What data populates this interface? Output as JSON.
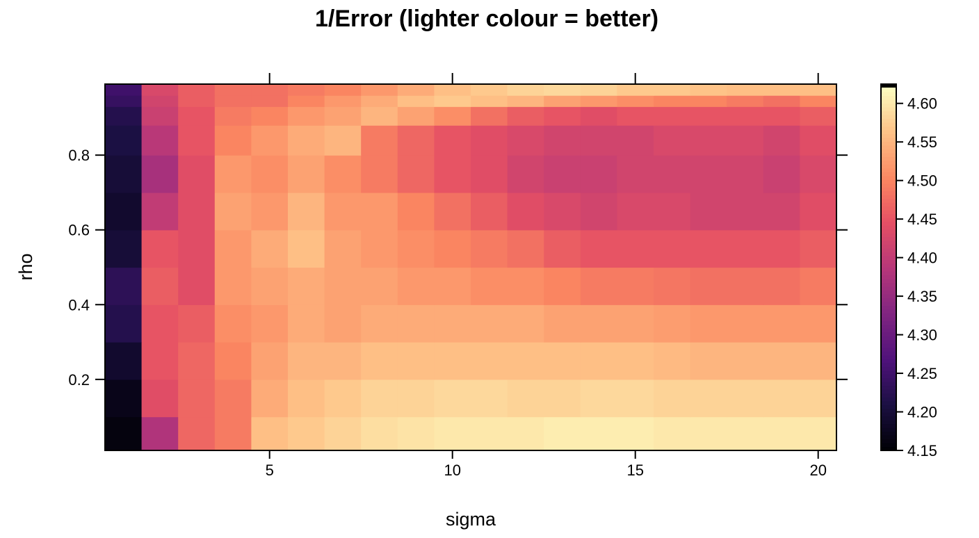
{
  "chart_data": {
    "type": "heatmap",
    "title": "1/Error (lighter colour = better)",
    "xlabel": "sigma",
    "ylabel": "rho",
    "x_range": [
      0.5,
      20.5
    ],
    "y_range": [
      0.01,
      0.99
    ],
    "x_ticks": [
      5,
      10,
      15,
      20
    ],
    "y_ticks": [
      0.2,
      0.4,
      0.6,
      0.8
    ],
    "x_tick_labels": [
      "5",
      "10",
      "15",
      "20"
    ],
    "y_tick_labels": [
      "0.2",
      "0.4",
      "0.6",
      "0.8"
    ],
    "sigma": [
      1,
      2,
      3,
      4,
      5,
      6,
      7,
      8,
      9,
      10,
      11,
      12,
      13,
      14,
      15,
      16,
      17,
      18,
      19,
      20
    ],
    "rho_breaks": [
      0.01,
      0.1,
      0.2,
      0.3,
      0.4,
      0.5,
      0.6,
      0.7,
      0.8,
      0.88,
      0.93,
      0.96,
      0.99
    ],
    "values": [
      [
        4.16,
        4.38,
        4.47,
        4.49,
        4.56,
        4.57,
        4.58,
        4.59,
        4.595,
        4.6,
        4.6,
        4.6,
        4.605,
        4.605,
        4.605,
        4.6,
        4.6,
        4.6,
        4.6,
        4.6
      ],
      [
        4.17,
        4.44,
        4.47,
        4.49,
        4.54,
        4.56,
        4.57,
        4.58,
        4.58,
        4.585,
        4.585,
        4.58,
        4.58,
        4.585,
        4.585,
        4.58,
        4.58,
        4.58,
        4.58,
        4.58
      ],
      [
        4.19,
        4.45,
        4.47,
        4.5,
        4.53,
        4.55,
        4.55,
        4.56,
        4.56,
        4.56,
        4.56,
        4.56,
        4.56,
        4.56,
        4.56,
        4.555,
        4.55,
        4.55,
        4.55,
        4.55
      ],
      [
        4.22,
        4.45,
        4.46,
        4.51,
        4.52,
        4.54,
        4.53,
        4.54,
        4.54,
        4.54,
        4.54,
        4.54,
        4.53,
        4.53,
        4.53,
        4.525,
        4.52,
        4.52,
        4.52,
        4.52
      ],
      [
        4.23,
        4.46,
        4.44,
        4.52,
        4.53,
        4.54,
        4.53,
        4.53,
        4.52,
        4.52,
        4.51,
        4.51,
        4.5,
        4.49,
        4.49,
        4.485,
        4.48,
        4.48,
        4.48,
        4.49
      ],
      [
        4.2,
        4.45,
        4.44,
        4.52,
        4.54,
        4.56,
        4.53,
        4.52,
        4.51,
        4.5,
        4.49,
        4.48,
        4.46,
        4.45,
        4.45,
        4.45,
        4.45,
        4.45,
        4.45,
        4.46
      ],
      [
        4.19,
        4.4,
        4.44,
        4.53,
        4.52,
        4.55,
        4.52,
        4.52,
        4.5,
        4.48,
        4.46,
        4.44,
        4.43,
        4.42,
        4.43,
        4.43,
        4.42,
        4.42,
        4.42,
        4.44
      ],
      [
        4.2,
        4.37,
        4.44,
        4.52,
        4.51,
        4.53,
        4.51,
        4.49,
        4.47,
        4.45,
        4.44,
        4.42,
        4.41,
        4.41,
        4.42,
        4.42,
        4.42,
        4.42,
        4.41,
        4.43
      ],
      [
        4.21,
        4.39,
        4.45,
        4.5,
        4.52,
        4.54,
        4.55,
        4.49,
        4.47,
        4.45,
        4.44,
        4.43,
        4.42,
        4.42,
        4.42,
        4.43,
        4.43,
        4.43,
        4.42,
        4.44
      ],
      [
        4.22,
        4.41,
        4.45,
        4.49,
        4.5,
        4.52,
        4.53,
        4.55,
        4.53,
        4.51,
        4.48,
        4.46,
        4.45,
        4.44,
        4.45,
        4.45,
        4.45,
        4.45,
        4.45,
        4.46
      ],
      [
        4.24,
        4.42,
        4.46,
        4.48,
        4.48,
        4.5,
        4.52,
        4.54,
        4.56,
        4.57,
        4.56,
        4.55,
        4.53,
        4.52,
        4.51,
        4.5,
        4.5,
        4.49,
        4.48,
        4.5
      ],
      [
        4.25,
        4.43,
        4.46,
        4.48,
        4.48,
        4.49,
        4.5,
        4.52,
        4.54,
        4.56,
        4.57,
        4.58,
        4.585,
        4.58,
        4.57,
        4.57,
        4.565,
        4.56,
        4.56,
        4.56
      ]
    ]
  }
}
